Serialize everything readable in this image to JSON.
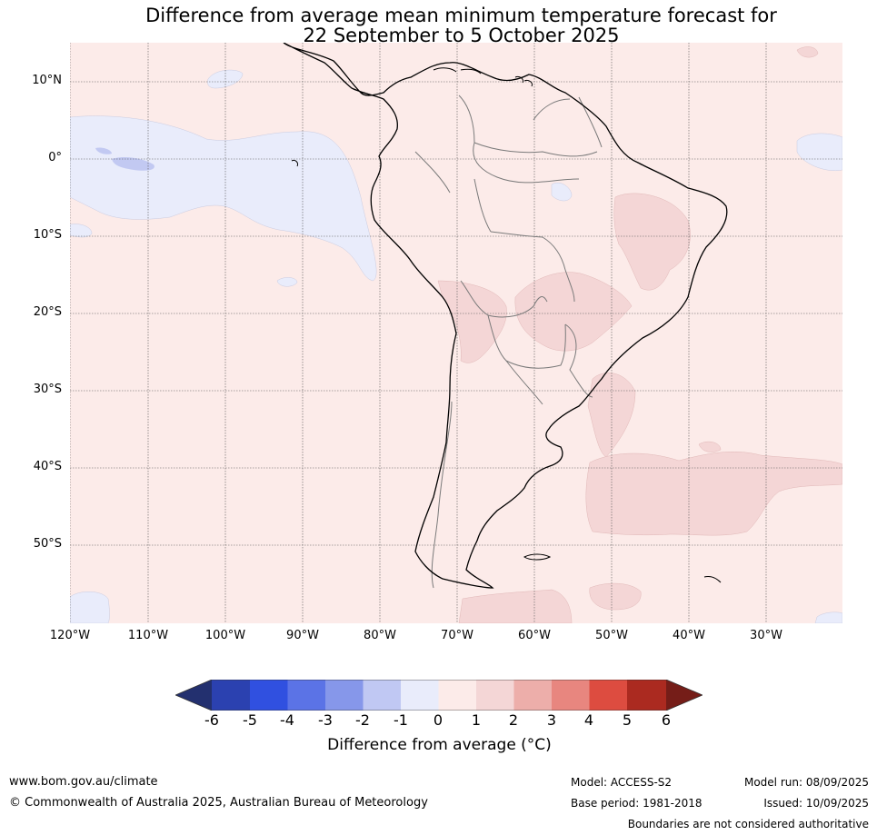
{
  "title": {
    "line1": "Difference from average mean minimum temperature forecast for",
    "line2": "22 September to 5 October 2025"
  },
  "map": {
    "region": "South America",
    "background_anomaly_color": "#fcebe9",
    "colors": {
      "land_outline": "#000000",
      "border": "#7a7a7a",
      "gridline": "#555555",
      "cool": "#e9ecfb",
      "warm": "#f4d6d6",
      "cooler": "#c2c9f2"
    },
    "lat_labels": [
      "10°N",
      "0°",
      "10°S",
      "20°S",
      "30°S",
      "40°S",
      "50°S"
    ],
    "lon_labels": [
      "120°W",
      "110°W",
      "100°W",
      "90°W",
      "80°W",
      "70°W",
      "60°W",
      "50°W",
      "40°W",
      "30°W"
    ]
  },
  "colorbar": {
    "ticks": [
      "-6",
      "-5",
      "-4",
      "-3",
      "-2",
      "-1",
      "0",
      "1",
      "2",
      "3",
      "4",
      "5",
      "6"
    ],
    "colors": [
      "#23306f",
      "#2b41b0",
      "#3050e0",
      "#5b73e6",
      "#8697ea",
      "#c0c8f3",
      "#e9ecfb",
      "#fcebe9",
      "#f4d6d6",
      "#edaeaa",
      "#e8867f",
      "#dd4c40",
      "#ab2a20",
      "#751d18"
    ],
    "label": "Difference from average (°C)"
  },
  "footer": {
    "website": "www.bom.gov.au/climate",
    "copyright": "© Commonwealth of Australia 2025, Australian Bureau of Meteorology",
    "model": "Model: ACCESS-S2",
    "base_period": "Base period: 1981-2018",
    "model_run": "Model run: 08/09/2025",
    "issued": "Issued: 10/09/2025",
    "disclaimer": "Boundaries are not considered authoritative"
  }
}
